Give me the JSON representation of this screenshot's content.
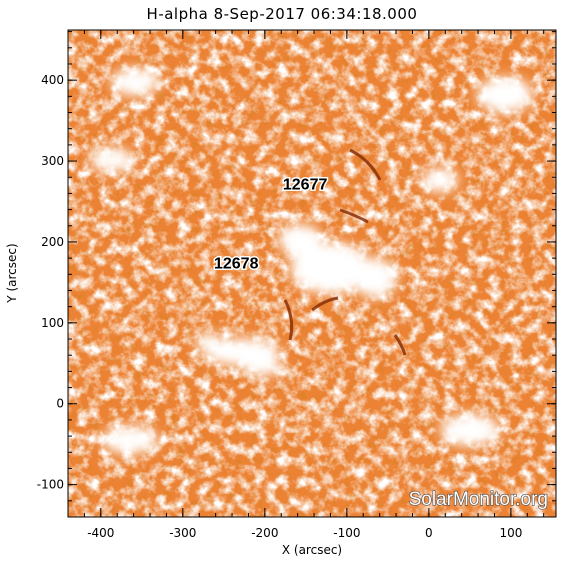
{
  "title": "H-alpha   8-Sep-2017 06:34:18.000",
  "axes": {
    "xlabel": "X (arcsec)",
    "ylabel": "Y (arcsec)",
    "x_range": [
      -440,
      155
    ],
    "y_range": [
      -140,
      462
    ],
    "x_ticks": [
      -400,
      -300,
      -200,
      -100,
      0,
      100
    ],
    "y_ticks": [
      -100,
      0,
      100,
      200,
      300,
      400
    ]
  },
  "regions": [
    {
      "label": "12677",
      "x": -178,
      "y": 265
    },
    {
      "label": "12678",
      "x": -262,
      "y": 167
    }
  ],
  "watermark": "SolarMonitor.org",
  "colors": {
    "background_texture": "#e8782a",
    "dark_filament": "#7a2a05",
    "plage": "#ffffff"
  }
}
